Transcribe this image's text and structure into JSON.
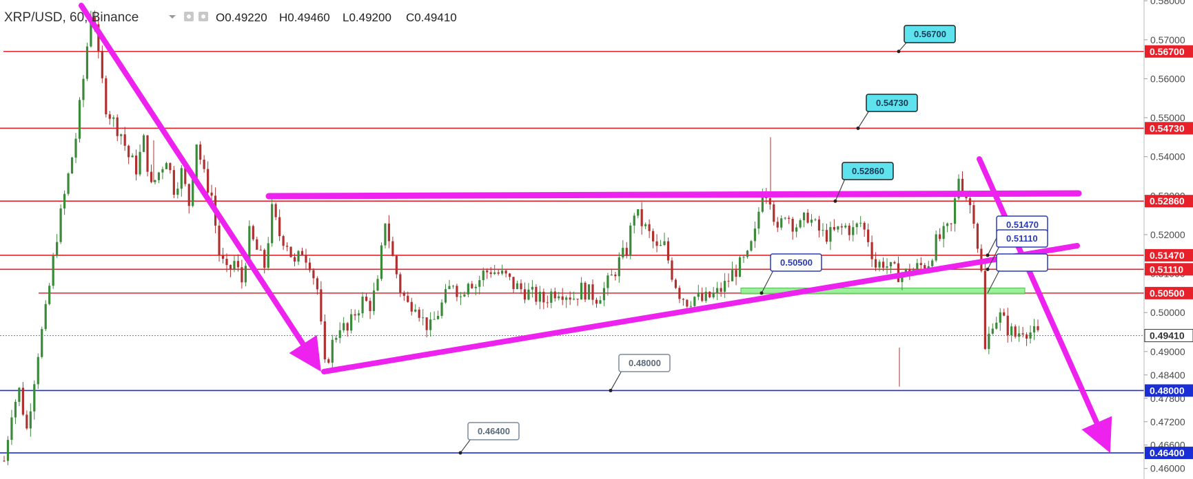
{
  "header": {
    "symbol": "XRP/USD, 60, Binance",
    "ohlc": [
      {
        "key": "O",
        "value": "0.49220"
      },
      {
        "key": "H",
        "value": "0.49460"
      },
      {
        "key": "L",
        "value": "0.49200"
      },
      {
        "key": "C",
        "value": "0.49410"
      }
    ]
  },
  "colors": {
    "up": "#3a8a3a",
    "down": "#b03030",
    "resistance": "#e8202a",
    "support": "#1a2ed6",
    "trend": "#ee22ee",
    "callout": "#5ee3ee",
    "zone": "#88ee88",
    "last_price": "#4b78c8"
  },
  "chart_data": {
    "type": "candlestick",
    "title": "",
    "xlabel": "",
    "ylabel": "",
    "ylim": [
      0.4573,
      0.5802
    ],
    "y_axis_ticks": [
      "0.58000",
      "0.57000",
      "0.56000",
      "0.55000",
      "0.54000",
      "0.53000",
      "0.52000",
      "0.51000",
      "0.50000",
      "0.49000",
      "0.48400",
      "0.47800",
      "0.47200",
      "0.46600",
      "0.46000"
    ],
    "horizontal_levels": [
      {
        "value": 0.567,
        "label": "0.56700",
        "kind": "resistance",
        "callout": "0.56700"
      },
      {
        "value": 0.5473,
        "label": "0.54730",
        "kind": "resistance",
        "callout": "0.54730"
      },
      {
        "value": 0.5286,
        "label": "0.52860",
        "kind": "resistance",
        "callout": "0.52860"
      },
      {
        "value": 0.5147,
        "label": "0.51470",
        "kind": "resistance",
        "callout": "0.51470"
      },
      {
        "value": 0.5111,
        "label": "0.51110",
        "kind": "resistance",
        "callout": "0.51110"
      },
      {
        "value": 0.505,
        "label": "0.50500",
        "kind": "resistance",
        "callout": "0.50500"
      },
      {
        "value": 0.48,
        "label": "0.48000",
        "kind": "support",
        "callout": "0.48000"
      },
      {
        "value": 0.464,
        "label": "0.46400",
        "kind": "support",
        "callout": "0.46400"
      }
    ],
    "last_price": {
      "value": 0.4941,
      "label": "0.49410"
    },
    "series_path": [
      [
        0,
        0.462
      ],
      [
        2,
        0.475
      ],
      [
        4,
        0.48
      ],
      [
        6,
        0.47
      ],
      [
        9,
        0.49
      ],
      [
        11,
        0.5
      ],
      [
        14,
        0.52
      ],
      [
        17,
        0.535
      ],
      [
        19,
        0.545
      ],
      [
        21,
        0.56
      ],
      [
        23,
        0.577
      ],
      [
        24,
        0.575
      ],
      [
        25,
        0.565
      ],
      [
        27,
        0.553
      ],
      [
        29,
        0.549
      ],
      [
        31,
        0.546
      ],
      [
        33,
        0.54
      ],
      [
        35,
        0.537
      ],
      [
        37,
        0.544
      ],
      [
        39,
        0.532
      ],
      [
        41,
        0.536
      ],
      [
        43,
        0.54
      ],
      [
        45,
        0.532
      ],
      [
        47,
        0.536
      ],
      [
        49,
        0.528
      ],
      [
        51,
        0.544
      ],
      [
        53,
        0.535
      ],
      [
        55,
        0.53
      ],
      [
        57,
        0.515
      ],
      [
        59,
        0.51
      ],
      [
        61,
        0.513
      ],
      [
        63,
        0.508
      ],
      [
        65,
        0.52
      ],
      [
        67,
        0.516
      ],
      [
        69,
        0.512
      ],
      [
        71,
        0.526
      ],
      [
        73,
        0.52
      ],
      [
        75,
        0.518
      ],
      [
        77,
        0.512
      ],
      [
        79,
        0.516
      ],
      [
        81,
        0.513
      ],
      [
        83,
        0.506
      ],
      [
        85,
        0.486
      ],
      [
        87,
        0.492
      ],
      [
        89,
        0.497
      ],
      [
        91,
        0.495
      ],
      [
        93,
        0.5
      ],
      [
        95,
        0.503
      ],
      [
        97,
        0.502
      ],
      [
        99,
        0.507
      ],
      [
        101,
        0.524
      ],
      [
        103,
        0.514
      ],
      [
        105,
        0.506
      ],
      [
        107,
        0.502
      ],
      [
        109,
        0.503
      ],
      [
        111,
        0.498
      ],
      [
        113,
        0.496
      ],
      [
        115,
        0.5
      ],
      [
        117,
        0.504
      ],
      [
        119,
        0.508
      ],
      [
        121,
        0.504
      ],
      [
        123,
        0.509
      ],
      [
        125,
        0.507
      ],
      [
        127,
        0.51
      ],
      [
        129,
        0.511
      ],
      [
        131,
        0.51
      ],
      [
        133,
        0.509
      ],
      [
        135,
        0.507
      ],
      [
        137,
        0.506
      ],
      [
        139,
        0.505
      ],
      [
        141,
        0.504
      ],
      [
        143,
        0.503
      ],
      [
        145,
        0.505
      ],
      [
        147,
        0.506
      ],
      [
        149,
        0.505
      ],
      [
        151,
        0.504
      ],
      [
        153,
        0.506
      ],
      [
        155,
        0.505
      ],
      [
        157,
        0.504
      ],
      [
        159,
        0.506
      ],
      [
        161,
        0.509
      ],
      [
        163,
        0.513
      ],
      [
        165,
        0.516
      ],
      [
        167,
        0.526
      ],
      [
        169,
        0.523
      ],
      [
        171,
        0.52
      ],
      [
        173,
        0.516
      ],
      [
        175,
        0.517
      ],
      [
        177,
        0.51
      ],
      [
        179,
        0.505
      ],
      [
        181,
        0.503
      ],
      [
        183,
        0.504
      ],
      [
        185,
        0.503
      ],
      [
        187,
        0.504
      ],
      [
        189,
        0.505
      ],
      [
        191,
        0.507
      ],
      [
        193,
        0.51
      ],
      [
        195,
        0.512
      ],
      [
        197,
        0.514
      ],
      [
        199,
        0.52
      ],
      [
        201,
        0.532
      ],
      [
        203,
        0.53
      ],
      [
        205,
        0.52
      ],
      [
        207,
        0.526
      ],
      [
        209,
        0.523
      ],
      [
        211,
        0.522
      ],
      [
        213,
        0.525
      ],
      [
        215,
        0.522
      ],
      [
        217,
        0.52
      ],
      [
        219,
        0.52
      ],
      [
        221,
        0.521
      ],
      [
        223,
        0.522
      ],
      [
        225,
        0.521
      ],
      [
        227,
        0.523
      ],
      [
        229,
        0.519
      ],
      [
        231,
        0.512
      ],
      [
        233,
        0.513
      ],
      [
        235,
        0.511
      ],
      [
        237,
        0.51
      ],
      [
        239,
        0.51
      ],
      [
        241,
        0.511
      ],
      [
        243,
        0.512
      ],
      [
        245,
        0.513
      ],
      [
        247,
        0.518
      ],
      [
        249,
        0.52
      ],
      [
        251,
        0.522
      ],
      [
        253,
        0.535
      ],
      [
        255,
        0.53
      ],
      [
        257,
        0.525
      ],
      [
        259,
        0.51
      ],
      [
        260,
        0.49
      ],
      [
        262,
        0.498
      ],
      [
        264,
        0.499
      ],
      [
        266,
        0.496
      ],
      [
        268,
        0.494
      ],
      [
        270,
        0.496
      ],
      [
        272,
        0.495
      ],
      [
        274,
        0.4941
      ]
    ]
  }
}
